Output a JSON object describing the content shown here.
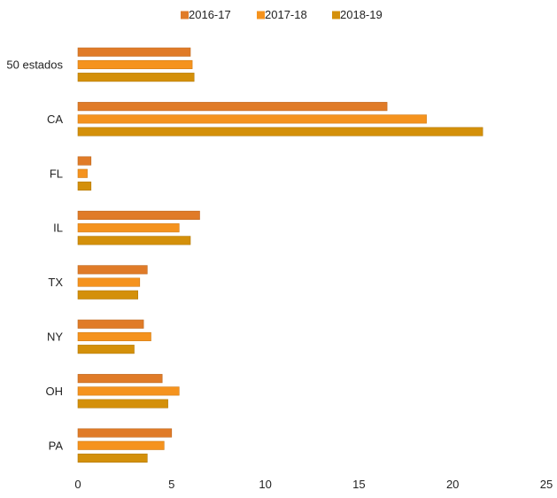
{
  "chart_data": {
    "type": "bar",
    "orientation": "horizontal",
    "title": "",
    "xlabel": "",
    "ylabel": "",
    "categories": [
      "50 estados",
      "CA",
      "FL",
      "IL",
      "TX",
      "NY",
      "OH",
      "PA"
    ],
    "series": [
      {
        "name": "2016-17",
        "color": "#E07B28",
        "values": [
          6.0,
          16.5,
          0.7,
          6.5,
          3.7,
          3.5,
          4.5,
          5.0
        ]
      },
      {
        "name": "2017-18",
        "color": "#F5931E",
        "values": [
          6.1,
          18.6,
          0.5,
          5.4,
          3.3,
          3.9,
          5.4,
          4.6
        ]
      },
      {
        "name": "2018-19",
        "color": "#D4900A",
        "values": [
          6.2,
          21.6,
          0.7,
          6.0,
          3.2,
          3.0,
          4.8,
          3.7
        ]
      }
    ],
    "xlim": [
      0,
      25
    ],
    "xticks": [
      "0",
      "5",
      "10",
      "15",
      "20",
      "25"
    ],
    "legend_position": "top",
    "grid": false
  }
}
